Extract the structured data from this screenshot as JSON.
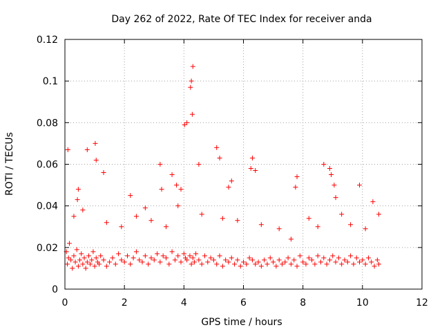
{
  "chart_data": {
    "type": "scatter",
    "title": "Day 262 of 2022, Rate Of TEC Index for receiver anda",
    "xlabel": "GPS time / hours",
    "ylabel": "ROTI / TECUs",
    "xlim": [
      0,
      12
    ],
    "ylim": [
      0,
      0.12
    ],
    "xticks": [
      "0",
      "2",
      "4",
      "6",
      "8",
      "10",
      "12"
    ],
    "yticks": [
      "0",
      "0.02",
      "0.04",
      "0.06",
      "0.08",
      "0.1",
      "0.12"
    ],
    "grid": true,
    "marker": "+",
    "color": "#ff0000",
    "series": [
      {
        "x": [
          0.05,
          0.08,
          0.12,
          0.15,
          0.2,
          0.25,
          0.3,
          0.35,
          0.4,
          0.45,
          0.5,
          0.55,
          0.6,
          0.65,
          0.7,
          0.75,
          0.8,
          0.85,
          0.9,
          0.95,
          1.0,
          1.05,
          1.1,
          1.15,
          1.2,
          1.3,
          1.4,
          1.5,
          1.6,
          1.7,
          1.8,
          1.9,
          2.0,
          2.1,
          2.2,
          2.3,
          2.4,
          2.5,
          2.6,
          2.7,
          2.8,
          2.9,
          3.0,
          3.1,
          3.2,
          3.3,
          3.4,
          3.5,
          3.6,
          3.7,
          3.8,
          3.9,
          4.0,
          4.05,
          4.1,
          4.2,
          4.25,
          4.3,
          4.35,
          4.4,
          4.5,
          4.6,
          4.7,
          4.8,
          4.9,
          5.0,
          5.1,
          5.2,
          5.3,
          5.4,
          5.5,
          5.6,
          5.7,
          5.8,
          5.9,
          6.0,
          6.1,
          6.2,
          6.3,
          6.4,
          6.5,
          6.6,
          6.7,
          6.8,
          6.9,
          7.0,
          7.1,
          7.2,
          7.3,
          7.4,
          7.5,
          7.6,
          7.7,
          7.8,
          7.9,
          8.0,
          8.1,
          8.2,
          8.3,
          8.4,
          8.5,
          8.6,
          8.7,
          8.8,
          8.9,
          9.0,
          9.1,
          9.2,
          9.3,
          9.4,
          9.5,
          9.6,
          9.7,
          9.8,
          9.9,
          10.0,
          10.1,
          10.2,
          10.3,
          10.4,
          10.5,
          10.55,
          0.1,
          0.42,
          0.45,
          0.75,
          1.02,
          1.05,
          1.3,
          2.2,
          2.7,
          3.2,
          3.25,
          3.6,
          3.75,
          3.9,
          4.02,
          4.1,
          4.22,
          4.25,
          4.28,
          4.3,
          4.5,
          5.1,
          5.2,
          5.5,
          5.6,
          6.25,
          6.3,
          6.4,
          7.75,
          7.8,
          8.7,
          8.9,
          8.95,
          9.05,
          9.1,
          9.9,
          10.35,
          10.55,
          0.3,
          0.6,
          1.4,
          1.9,
          2.4,
          2.9,
          3.4,
          3.8,
          4.6,
          5.3,
          5.8,
          6.6,
          7.2,
          7.6,
          8.2,
          8.5,
          9.3,
          9.6,
          10.1
        ],
        "y": [
          0.018,
          0.012,
          0.015,
          0.022,
          0.014,
          0.01,
          0.016,
          0.013,
          0.019,
          0.011,
          0.014,
          0.017,
          0.012,
          0.015,
          0.01,
          0.013,
          0.016,
          0.012,
          0.014,
          0.018,
          0.011,
          0.015,
          0.013,
          0.012,
          0.016,
          0.014,
          0.011,
          0.013,
          0.015,
          0.012,
          0.017,
          0.014,
          0.013,
          0.016,
          0.012,
          0.015,
          0.018,
          0.014,
          0.013,
          0.016,
          0.012,
          0.015,
          0.014,
          0.017,
          0.013,
          0.016,
          0.015,
          0.012,
          0.018,
          0.014,
          0.016,
          0.013,
          0.017,
          0.015,
          0.014,
          0.016,
          0.012,
          0.015,
          0.013,
          0.017,
          0.014,
          0.012,
          0.016,
          0.013,
          0.015,
          0.014,
          0.012,
          0.016,
          0.011,
          0.014,
          0.013,
          0.015,
          0.012,
          0.014,
          0.011,
          0.013,
          0.012,
          0.015,
          0.014,
          0.012,
          0.013,
          0.011,
          0.014,
          0.012,
          0.015,
          0.013,
          0.011,
          0.014,
          0.012,
          0.013,
          0.015,
          0.012,
          0.014,
          0.011,
          0.016,
          0.013,
          0.012,
          0.015,
          0.014,
          0.012,
          0.016,
          0.013,
          0.015,
          0.012,
          0.014,
          0.016,
          0.013,
          0.015,
          0.012,
          0.014,
          0.013,
          0.016,
          0.012,
          0.015,
          0.013,
          0.014,
          0.012,
          0.015,
          0.013,
          0.011,
          0.014,
          0.012,
          0.067,
          0.043,
          0.048,
          0.067,
          0.07,
          0.062,
          0.056,
          0.045,
          0.039,
          0.06,
          0.048,
          0.055,
          0.05,
          0.048,
          0.079,
          0.08,
          0.097,
          0.1,
          0.084,
          0.107,
          0.06,
          0.068,
          0.063,
          0.049,
          0.052,
          0.058,
          0.063,
          0.057,
          0.049,
          0.054,
          0.06,
          0.058,
          0.055,
          0.05,
          0.044,
          0.05,
          0.042,
          0.036,
          0.035,
          0.038,
          0.032,
          0.03,
          0.035,
          0.033,
          0.03,
          0.04,
          0.036,
          0.034,
          0.033,
          0.031,
          0.029,
          0.024,
          0.034,
          0.03,
          0.036,
          0.031,
          0.029
        ]
      }
    ]
  }
}
